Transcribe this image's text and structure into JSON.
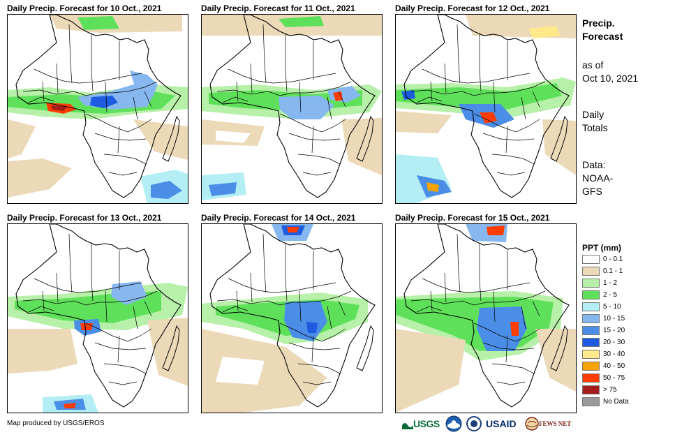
{
  "panels": [
    {
      "title": "Daily Precip. Forecast for 10 Oct., 2021"
    },
    {
      "title": "Daily Precip. Forecast for 11 Oct., 2021"
    },
    {
      "title": "Daily Precip. Forecast for 12 Oct., 2021"
    },
    {
      "title": "Daily Precip. Forecast for 13 Oct., 2021"
    },
    {
      "title": "Daily Precip. Forecast for 14 Oct., 2021"
    },
    {
      "title": "Daily Precip. Forecast for 15 Oct., 2021"
    }
  ],
  "side": {
    "title_line1": "Precip.",
    "title_line2": "Forecast",
    "asof_line1": "as of",
    "asof_line2": "Oct 10, 2021",
    "totals_line1": "Daily",
    "totals_line2": "Totals",
    "data_line1": "Data:",
    "data_line2": "NOAA-",
    "data_line3": "GFS"
  },
  "legend": {
    "title": "PPT (mm)",
    "items": [
      {
        "label": "0 - 0.1",
        "color": "#ffffff"
      },
      {
        "label": "0.1 - 1",
        "color": "#ecd9b8"
      },
      {
        "label": "1 - 2",
        "color": "#b7f0a8"
      },
      {
        "label": "2 - 5",
        "color": "#5fe05a"
      },
      {
        "label": "5 - 10",
        "color": "#b3eef5"
      },
      {
        "label": "10 - 15",
        "color": "#86b7ef"
      },
      {
        "label": "15 - 20",
        "color": "#4a8ee8"
      },
      {
        "label": "20 - 30",
        "color": "#1d5be0"
      },
      {
        "label": "30 - 40",
        "color": "#ffe98a"
      },
      {
        "label": "40 - 50",
        "color": "#f5a300"
      },
      {
        "label": "50 - 75",
        "color": "#ff3d00"
      },
      {
        "label": "> 75",
        "color": "#a51c1c"
      },
      {
        "label": "No Data",
        "color": "#9a9a9a"
      }
    ]
  },
  "credit": "Map produced by USGS/EROS",
  "logos": {
    "usgs": "USGS",
    "usaid": "USAID",
    "fews": "FEWS NET"
  }
}
